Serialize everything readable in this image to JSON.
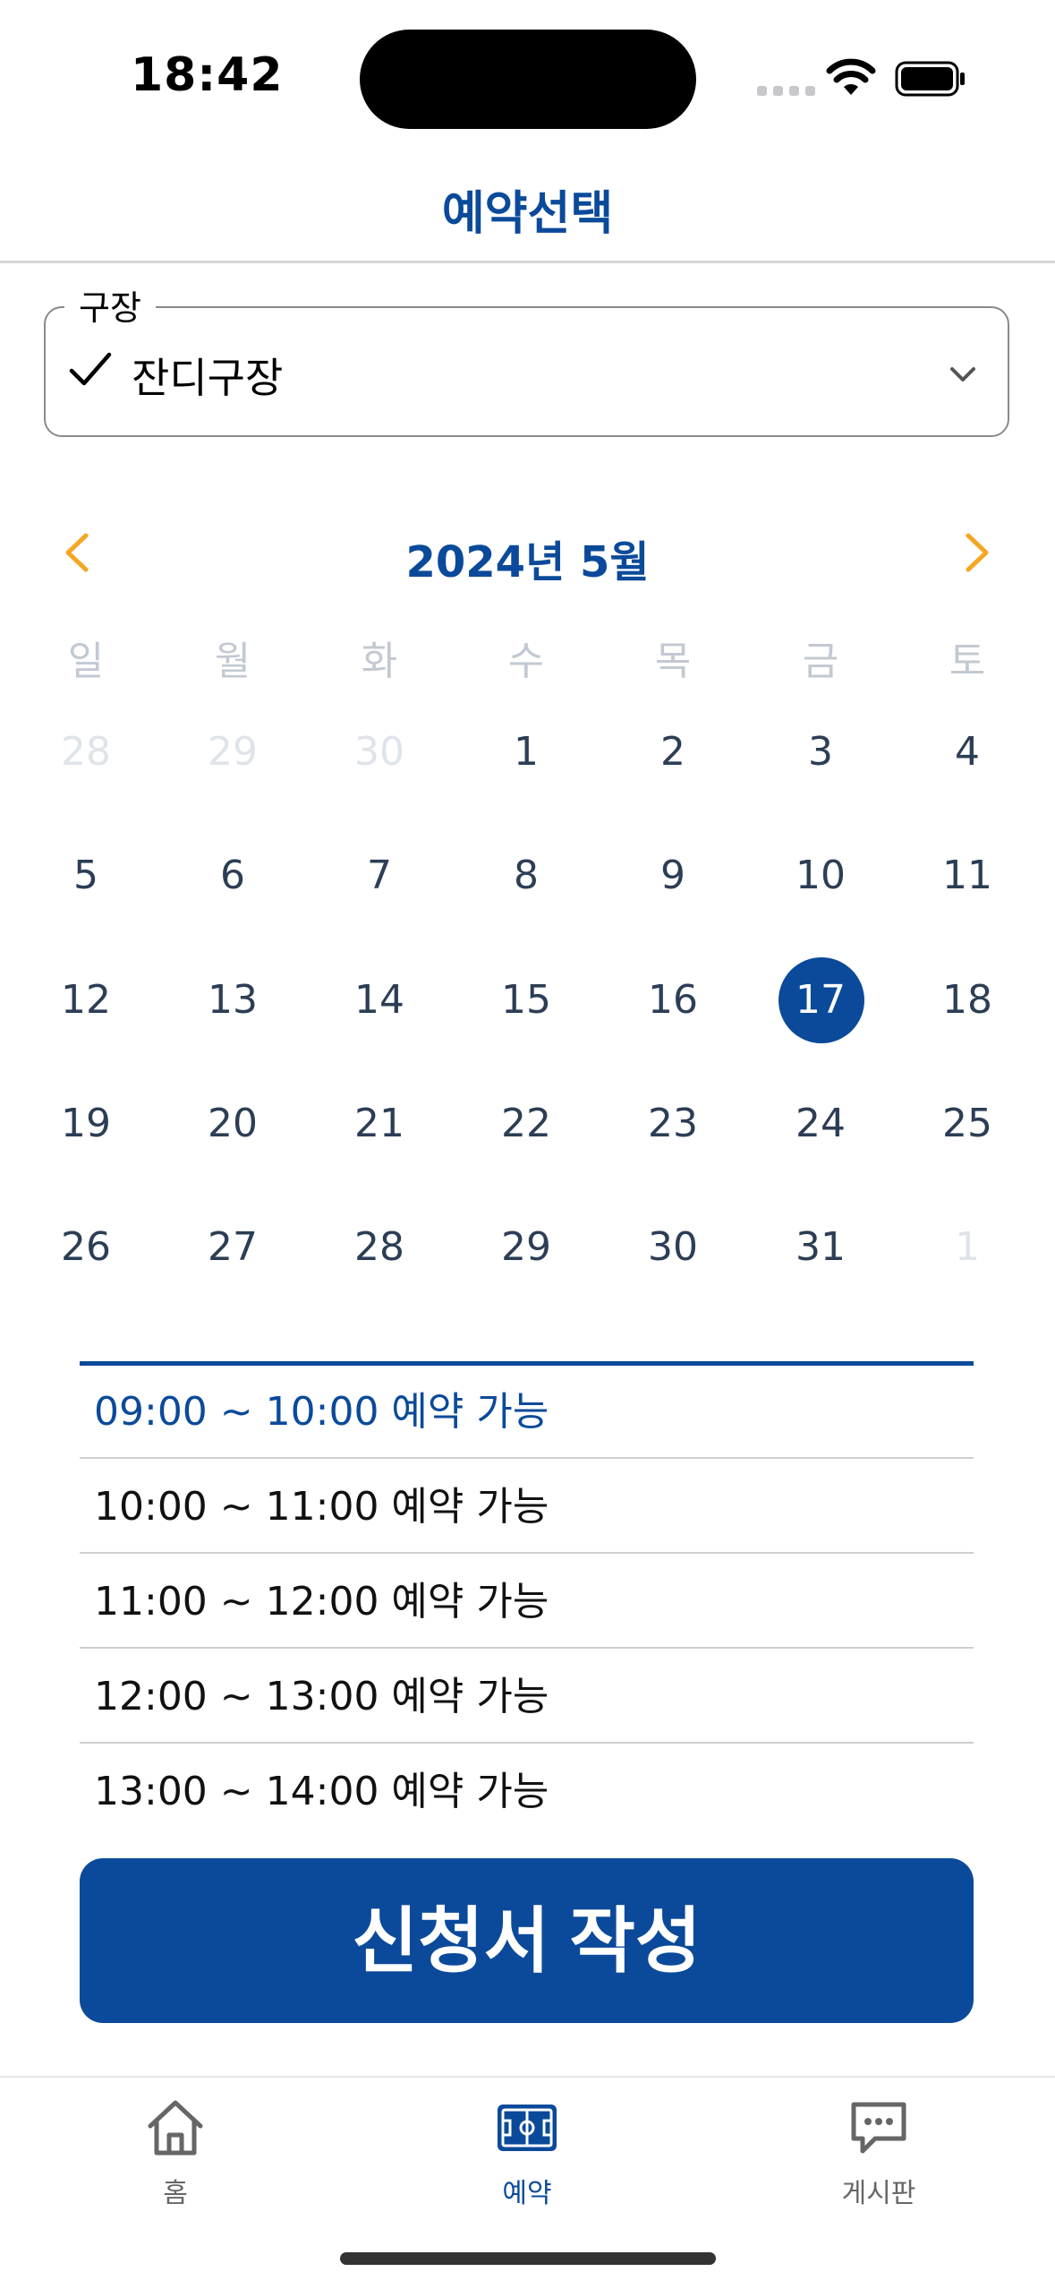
{
  "status_bar": {
    "time": "18:42"
  },
  "nav": {
    "title": "예약선택"
  },
  "field_selector": {
    "legend": "구장",
    "value": "잔디구장",
    "icon": "checkmark-icon",
    "dropdown_icon": "chevron-down-icon"
  },
  "calendar": {
    "title": "2024년 5월",
    "prev_icon": "chevron-left-icon",
    "next_icon": "chevron-right-icon",
    "weekdays": [
      "일",
      "월",
      "화",
      "수",
      "목",
      "금",
      "토"
    ],
    "weeks": [
      [
        "28",
        "29",
        "30",
        "1",
        "2",
        "3",
        "4"
      ],
      [
        "5",
        "6",
        "7",
        "8",
        "9",
        "10",
        "11"
      ],
      [
        "12",
        "13",
        "14",
        "15",
        "16",
        "17",
        "18"
      ],
      [
        "19",
        "20",
        "21",
        "22",
        "23",
        "24",
        "25"
      ],
      [
        "26",
        "27",
        "28",
        "29",
        "30",
        "31",
        "1"
      ]
    ],
    "selected_day": "17",
    "accent_color": "#0b4a9a",
    "arrow_color": "#f5a623"
  },
  "time_slots": [
    "09:00 ~ 10:00 예약 가능",
    "10:00 ~ 11:00 예약 가능",
    "11:00 ~ 12:00 예약 가능",
    "12:00 ~ 13:00 예약 가능",
    "13:00 ~ 14:00 예약 가능"
  ],
  "apply_button": {
    "label": "신청서 작성"
  },
  "tab_bar": [
    {
      "label": "홈",
      "icon": "home-icon",
      "active": false
    },
    {
      "label": "예약",
      "icon": "field-icon",
      "active": true
    },
    {
      "label": "게시판",
      "icon": "chat-bubble-icon",
      "active": false
    }
  ]
}
